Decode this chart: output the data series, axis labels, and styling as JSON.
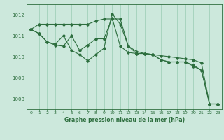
{
  "title": "Graphe pression niveau de la mer (hPa)",
  "background_color": "#cce8dc",
  "grid_color": "#99ccb3",
  "line_color": "#2d6e3e",
  "xlim": [
    -0.5,
    23.5
  ],
  "ylim": [
    1007.5,
    1012.5
  ],
  "yticks": [
    1008,
    1009,
    1010,
    1011,
    1012
  ],
  "xticks": [
    0,
    1,
    2,
    3,
    4,
    5,
    6,
    7,
    8,
    9,
    10,
    11,
    12,
    13,
    14,
    15,
    16,
    17,
    18,
    19,
    20,
    21,
    22,
    23
  ],
  "series1": {
    "x": [
      0,
      1,
      2,
      3,
      4,
      5,
      6,
      7,
      8,
      9,
      10,
      11,
      12,
      13,
      14,
      15,
      16,
      17,
      18,
      19,
      20,
      21,
      22,
      23
    ],
    "y": [
      1011.3,
      1011.55,
      1011.55,
      1011.55,
      1011.55,
      1011.55,
      1011.55,
      1011.55,
      1011.7,
      1011.8,
      1011.8,
      1011.8,
      1010.5,
      1010.25,
      1010.15,
      1010.1,
      1010.05,
      1010.0,
      1009.95,
      1009.9,
      1009.85,
      1009.7,
      1007.75,
      1007.75
    ]
  },
  "series2": {
    "x": [
      0,
      1,
      2,
      3,
      4,
      5,
      6,
      7,
      8,
      9,
      10,
      11,
      12,
      13,
      14,
      15,
      16,
      17,
      18,
      19,
      20,
      21,
      22,
      23
    ],
    "y": [
      1011.3,
      1011.1,
      1010.7,
      1010.6,
      1011.0,
      1010.3,
      1010.1,
      1009.8,
      1010.1,
      1010.4,
      1012.05,
      1011.55,
      1010.5,
      1010.15,
      1010.15,
      1010.1,
      1009.85,
      1009.75,
      1009.75,
      1009.75,
      1009.6,
      1009.35,
      1007.75,
      1007.75
    ]
  },
  "series3": {
    "x": [
      0,
      1,
      2,
      3,
      4,
      5,
      6,
      7,
      8,
      9,
      10,
      11,
      12,
      13,
      14,
      15,
      16,
      17,
      18,
      19,
      20,
      21,
      22,
      23
    ],
    "y": [
      1011.3,
      1011.1,
      1010.7,
      1010.55,
      1010.5,
      1011.0,
      1010.3,
      1010.55,
      1010.85,
      1010.85,
      1011.85,
      1010.5,
      1010.2,
      1010.15,
      1010.15,
      1010.1,
      1009.85,
      1009.75,
      1009.75,
      1009.75,
      1009.55,
      1009.35,
      1007.75,
      1007.75
    ]
  }
}
